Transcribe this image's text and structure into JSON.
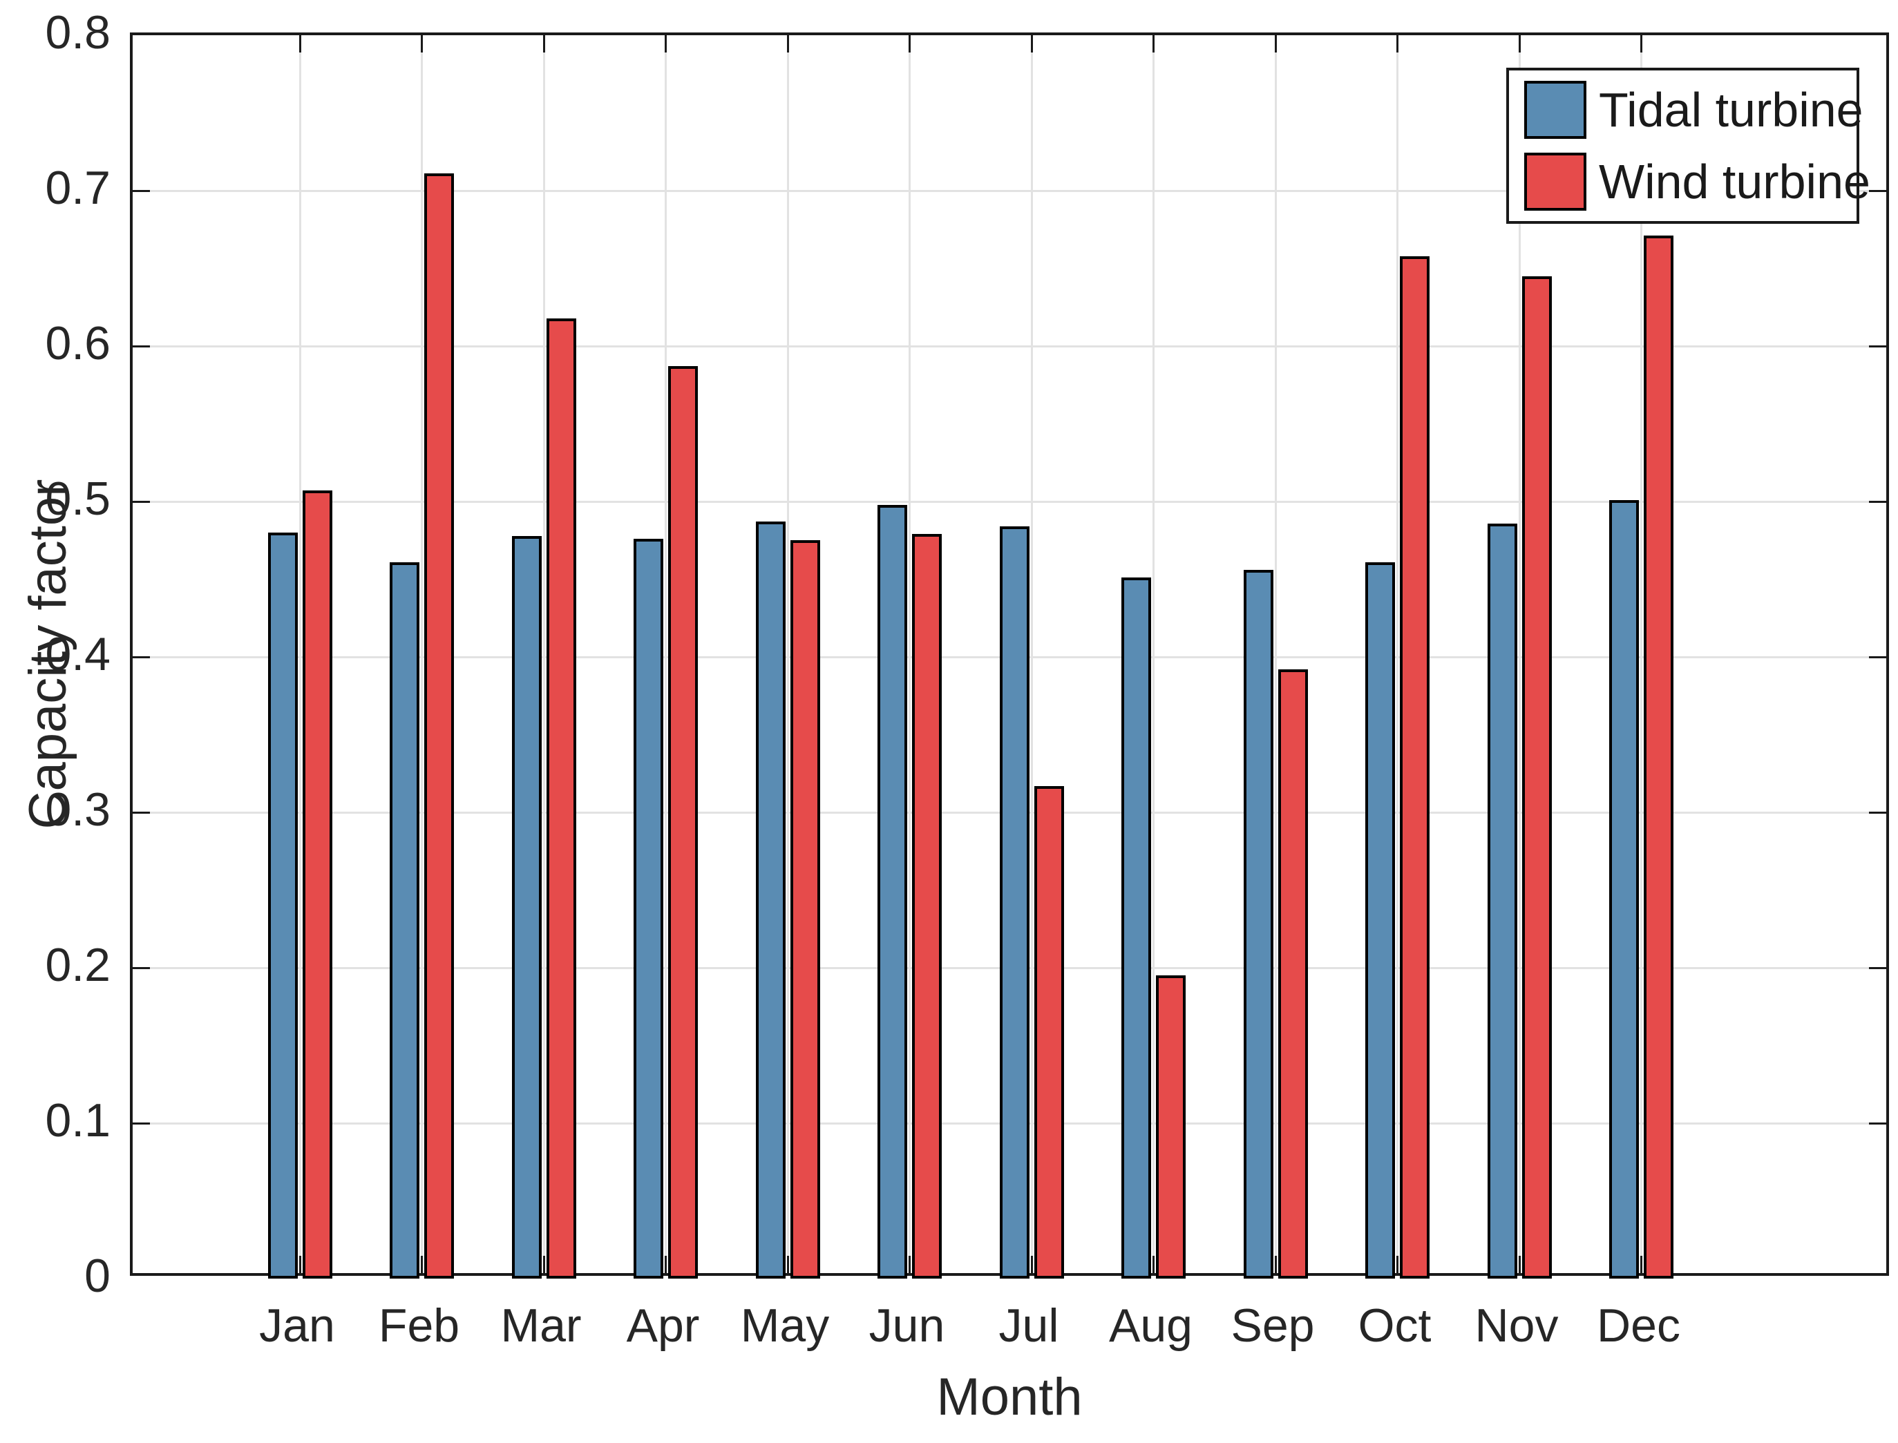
{
  "chart_data": {
    "type": "bar",
    "title": "",
    "xlabel": "Month",
    "ylabel": "Capacity factor",
    "categories": [
      "Jan",
      "Feb",
      "Mar",
      "Apr",
      "May",
      "Jun",
      "Jul",
      "Aug",
      "Sep",
      "Oct",
      "Nov",
      "Dec"
    ],
    "series": [
      {
        "name": "Tidal turbine",
        "color": "#5A8CB3",
        "values": [
          0.48,
          0.461,
          0.478,
          0.476,
          0.487,
          0.498,
          0.484,
          0.451,
          0.456,
          0.461,
          0.486,
          0.501
        ]
      },
      {
        "name": "Wind turbine",
        "color": "#E64B4B",
        "values": [
          0.507,
          0.711,
          0.618,
          0.587,
          0.475,
          0.479,
          0.317,
          0.195,
          0.392,
          0.658,
          0.645,
          0.671
        ]
      }
    ],
    "ylim": [
      0,
      0.8
    ],
    "yticks": [
      0,
      0.1,
      0.2,
      0.3,
      0.4,
      0.5,
      0.6,
      0.7,
      0.8
    ],
    "ytick_labels": [
      "0",
      "0.1",
      "0.2",
      "0.3",
      "0.4",
      "0.5",
      "0.6",
      "0.7",
      "0.8"
    ],
    "grid": true,
    "legend_position": "top-right"
  },
  "style": {
    "bar_edge_color": "#000000",
    "axis_color": "#1a1a1a",
    "grid_color": "#e2e2e2",
    "text_color": "#262626",
    "background_color": "#ffffff"
  }
}
